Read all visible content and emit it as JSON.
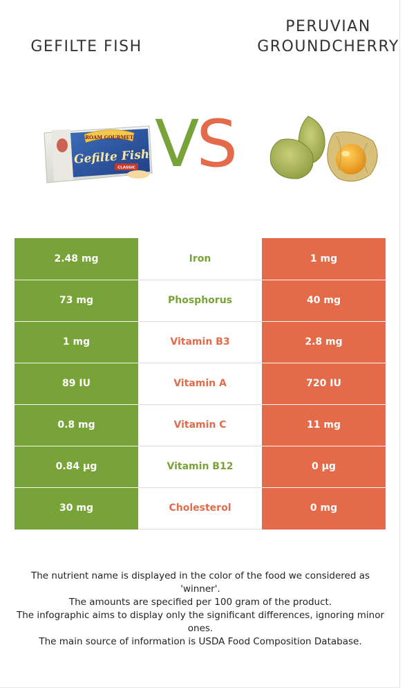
{
  "header": {
    "left_food": "GEFILTE FISH",
    "right_food_line1": "PERUVIAN",
    "right_food_line2": "GROUNDCHERRY",
    "vs_v": "V",
    "vs_s": "S"
  },
  "colors": {
    "left_winner": "#77a339",
    "right_winner": "#e36b4a"
  },
  "images": {
    "left_package_brand": "ROAM GOURMET",
    "left_package_product": "Gefilte Fish",
    "left_package_variant": "CLASSIC"
  },
  "rows": [
    {
      "left": "2.48 mg",
      "nutrient": "Iron",
      "right": "1 mg",
      "winner": "left"
    },
    {
      "left": "73 mg",
      "nutrient": "Phosphorus",
      "right": "40 mg",
      "winner": "left"
    },
    {
      "left": "1 mg",
      "nutrient": "Vitamin B3",
      "right": "2.8 mg",
      "winner": "right"
    },
    {
      "left": "89 IU",
      "nutrient": "Vitamin A",
      "right": "720 IU",
      "winner": "right"
    },
    {
      "left": "0.8 mg",
      "nutrient": "Vitamin C",
      "right": "11 mg",
      "winner": "right"
    },
    {
      "left": "0.84 µg",
      "nutrient": "Vitamin B12",
      "right": "0 µg",
      "winner": "left"
    },
    {
      "left": "30 mg",
      "nutrient": "Cholesterol",
      "right": "0 mg",
      "winner": "right"
    }
  ],
  "footnotes": [
    "The nutrient name is displayed in the color of the food we considered as 'winner'.",
    "The amounts are specified per 100 gram of the product.",
    "The infographic aims to display only the significant differences, ignoring minor ones.",
    "The main source of information is USDA Food Composition Database."
  ]
}
